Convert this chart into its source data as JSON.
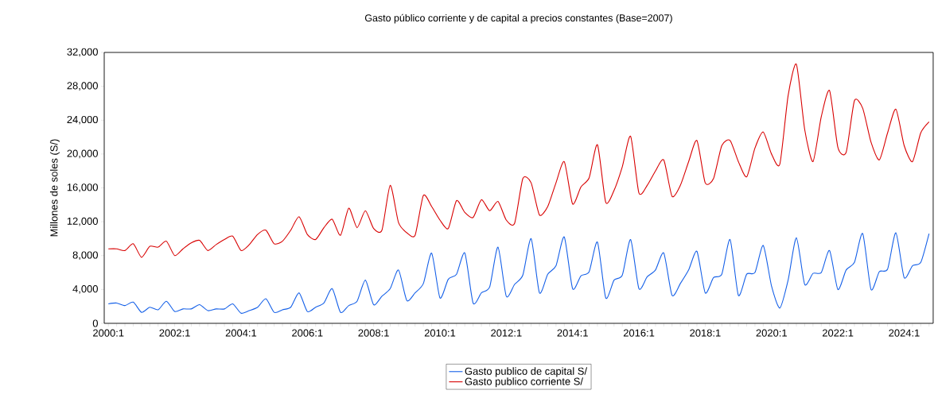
{
  "chart_data": {
    "type": "line",
    "title": "Gasto público corriente y de capital a precios constantes (Base=2007)",
    "ylabel": "Millones de soles (S/)",
    "categories": [
      "2000:1",
      null,
      null,
      null,
      null,
      null,
      null,
      null,
      "2002:1",
      null,
      null,
      null,
      null,
      null,
      null,
      null,
      "2004:1",
      null,
      null,
      null,
      null,
      null,
      null,
      null,
      "2006:1",
      null,
      null,
      null,
      null,
      null,
      null,
      null,
      "2008:1",
      null,
      null,
      null,
      null,
      null,
      null,
      null,
      "2010:1",
      null,
      null,
      null,
      null,
      null,
      null,
      null,
      "2012:1",
      null,
      null,
      null,
      null,
      null,
      null,
      null,
      "2014:1",
      null,
      null,
      null,
      null,
      null,
      null,
      null,
      "2016:1",
      null,
      null,
      null,
      null,
      null,
      null,
      null,
      "2018:1",
      null,
      null,
      null,
      null,
      null,
      null,
      null,
      "2020:1",
      null,
      null,
      null,
      null,
      null,
      null,
      null,
      "2022:1",
      null,
      null,
      null,
      null,
      null,
      null,
      null,
      "2024:1",
      null,
      null,
      null
    ],
    "series": [
      {
        "name": "Gasto publico de capital S/",
        "color": "#1560e8",
        "values": [
          2300,
          2400,
          2100,
          2500,
          1300,
          1900,
          1600,
          2600,
          1400,
          1700,
          1700,
          2200,
          1500,
          1700,
          1700,
          2300,
          1200,
          1500,
          1900,
          2900,
          1300,
          1600,
          1900,
          3600,
          1400,
          1900,
          2400,
          4100,
          1300,
          2100,
          2600,
          5100,
          2200,
          3200,
          4100,
          6300,
          2700,
          3600,
          4700,
          8300,
          3000,
          5200,
          5800,
          8300,
          2400,
          3600,
          4300,
          9000,
          3200,
          4600,
          5700,
          10000,
          3600,
          5800,
          6800,
          10200,
          4100,
          5600,
          6100,
          9600,
          3000,
          5100,
          5700,
          9900,
          4100,
          5500,
          6300,
          8300,
          3300,
          4700,
          6300,
          8500,
          3600,
          5400,
          5800,
          9900,
          3300,
          5800,
          6000,
          9200,
          4400,
          1800,
          5100,
          10100,
          4600,
          5900,
          6000,
          8600,
          4000,
          6300,
          7200,
          10600,
          4000,
          6100,
          6400,
          10700,
          5400,
          6800,
          7200,
          10600
        ]
      },
      {
        "name": "Gasto publico corriente S/",
        "color": "#d80000",
        "values": [
          8800,
          8800,
          8600,
          9400,
          7800,
          9100,
          9000,
          9700,
          8000,
          8800,
          9500,
          9800,
          8600,
          9300,
          9900,
          10300,
          8600,
          9300,
          10500,
          11000,
          9400,
          9700,
          11000,
          12600,
          10500,
          9900,
          11300,
          12300,
          10400,
          13600,
          11300,
          13300,
          11200,
          11000,
          16300,
          11900,
          10700,
          10400,
          15100,
          13800,
          12200,
          11200,
          14500,
          13100,
          12500,
          14600,
          13300,
          14400,
          12200,
          11800,
          17100,
          16600,
          12800,
          13800,
          16600,
          19100,
          14100,
          16100,
          17200,
          21100,
          14300,
          15700,
          18500,
          22100,
          15400,
          16300,
          18000,
          19300,
          15000,
          16300,
          19100,
          21600,
          16600,
          17100,
          21000,
          21600,
          19100,
          17300,
          20700,
          22600,
          20000,
          18800,
          26900,
          30600,
          22900,
          19100,
          24400,
          27500,
          20800,
          20200,
          26300,
          25400,
          21400,
          19300,
          22500,
          25300,
          21000,
          19100,
          22500,
          23800
        ]
      }
    ],
    "ylim": [
      0,
      32000
    ],
    "yticks": [
      0,
      {
        "value": 4000,
        "label": "4,000"
      },
      {
        "value": 8000,
        "label": "8,000"
      },
      {
        "value": 12000,
        "label": "12,000"
      },
      {
        "value": 16000,
        "label": "16,000"
      },
      {
        "value": 20000,
        "label": "20,000"
      },
      {
        "value": 24000,
        "label": "24,000"
      },
      {
        "value": 28000,
        "label": "28,000"
      },
      {
        "value": 32000,
        "label": "32,000"
      }
    ],
    "grid": false,
    "legend": "bottom",
    "line_style": "solid"
  }
}
